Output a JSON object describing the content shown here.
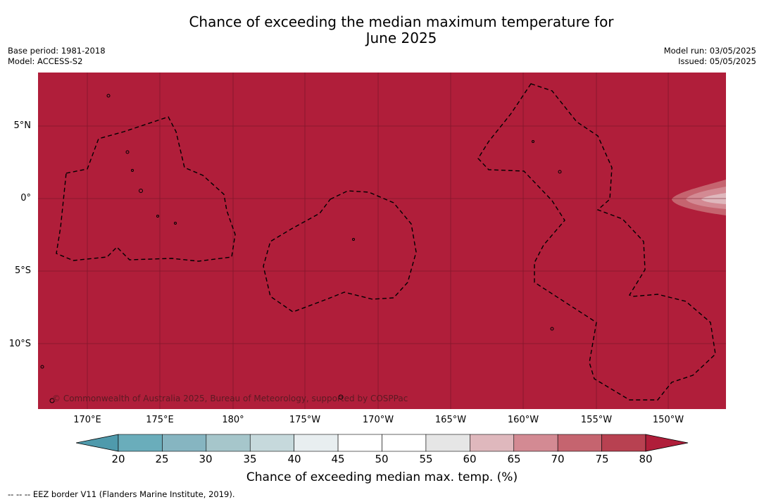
{
  "title_line1": "Chance of exceeding the median maximum temperature for",
  "title_line2": "June 2025",
  "base_period": "Base period: 1981-2018",
  "model": "Model: ACCESS-S2",
  "model_run": "Model run: 03/05/2025",
  "issued": "Issued: 05/05/2025",
  "lat_labels": [
    "5°N",
    "0°",
    "5°S",
    "10°S"
  ],
  "lon_labels": [
    "170°E",
    "175°E",
    "180°",
    "175°W",
    "170°W",
    "165°W",
    "160°W",
    "155°W",
    "150°W"
  ],
  "colorbar": {
    "ticks": [
      "20",
      "25",
      "30",
      "35",
      "40",
      "45",
      "50",
      "55",
      "60",
      "65",
      "70",
      "75",
      "80"
    ],
    "colors": [
      "#6aadbb",
      "#86b5c1",
      "#a6c6cb",
      "#c6d9dc",
      "#e8eef0",
      "#ffffff",
      "#ffffff",
      "#e6e6e6",
      "#dfb8bd",
      "#d38a93",
      "#c5646f",
      "#b84151"
    ],
    "under_color": "#4f9aac",
    "over_color": "#b01e3a",
    "label": "Chance of exceeding median max. temp. (%)"
  },
  "map": {
    "background_color": "#b01e3a",
    "copyright": "© Commonwealth of Australia 2025, Bureau of Meteorology, supported by COSPPac"
  },
  "legend_note": "-- -- -- EEZ border V11 (Flanders Marine Institute, 2019)."
}
